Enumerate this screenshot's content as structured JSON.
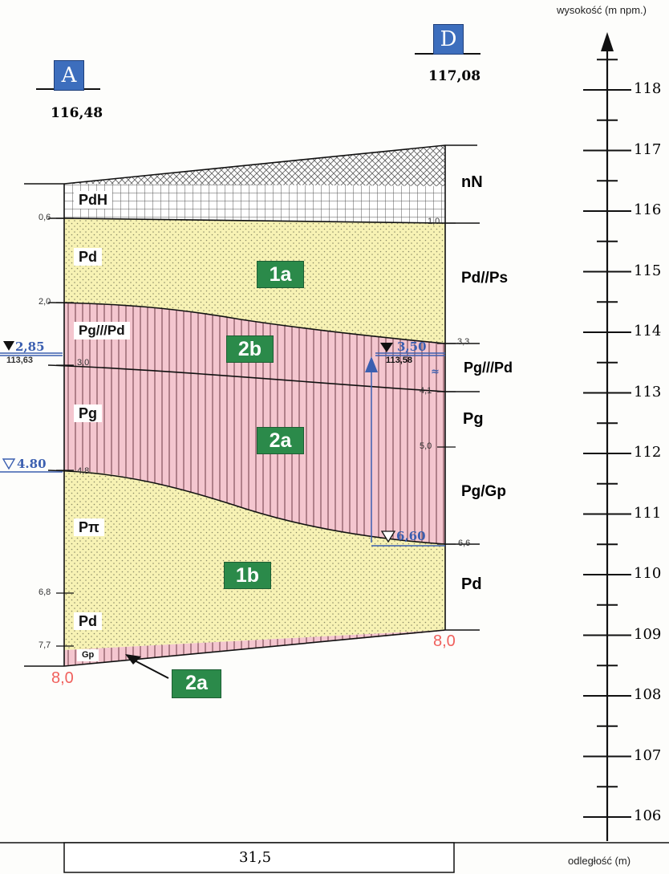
{
  "axis": {
    "y_title": "wysokość (m npm.)",
    "x_title": "odległość (m)",
    "ticks": [
      "118",
      "117",
      "116",
      "115",
      "114",
      "113",
      "112",
      "111",
      "110",
      "109",
      "108",
      "107",
      "106"
    ]
  },
  "boreholes": {
    "left": {
      "name": "A",
      "elevation": "116,48",
      "depth": "8,0"
    },
    "right": {
      "name": "D",
      "elevation": "117,08",
      "depth": "8,0"
    }
  },
  "distance": "31,5",
  "layers": {
    "fill": "nN",
    "pdh": "PdH",
    "pd_left_top": "Pd",
    "pd_ps_right": "Pd//Ps",
    "pgpd_left": "Pg///Pd",
    "pgpd_right": "Pg///Pd",
    "pg_left": "Pg",
    "pg_right": "Pg",
    "pg_gp_right": "Pg/Gp",
    "ppi_left": "Pπ",
    "pd_left_bottom": "Pd",
    "pd_right_bottom": "Pd",
    "gp_left": "Gp"
  },
  "zones": {
    "z1a": "1a",
    "z2b": "2b",
    "z2a": "2a",
    "z1b": "1b",
    "z2a_bottom": "2a"
  },
  "left_depths": [
    "0,6",
    "2,0",
    "3,0",
    "4,8",
    "6,8",
    "7,7"
  ],
  "right_depths": [
    "1,0",
    "3,3",
    "4,1",
    "5,0",
    "6,6"
  ],
  "water": {
    "left_stable": "2,85",
    "left_stable_elev": "113,63",
    "left_encountered": "4.80",
    "right_stable": "3,50",
    "right_stable_elev": "113,58",
    "right_encountered": "6,60",
    "right_rise": "≈"
  },
  "colors": {
    "sand": "#f7f2b4",
    "clay": "#f4c6cf",
    "fill_grid": "#444444",
    "water": "#3b5fb0",
    "badge": "#2b8a4a",
    "red_text": "#f0605c"
  }
}
